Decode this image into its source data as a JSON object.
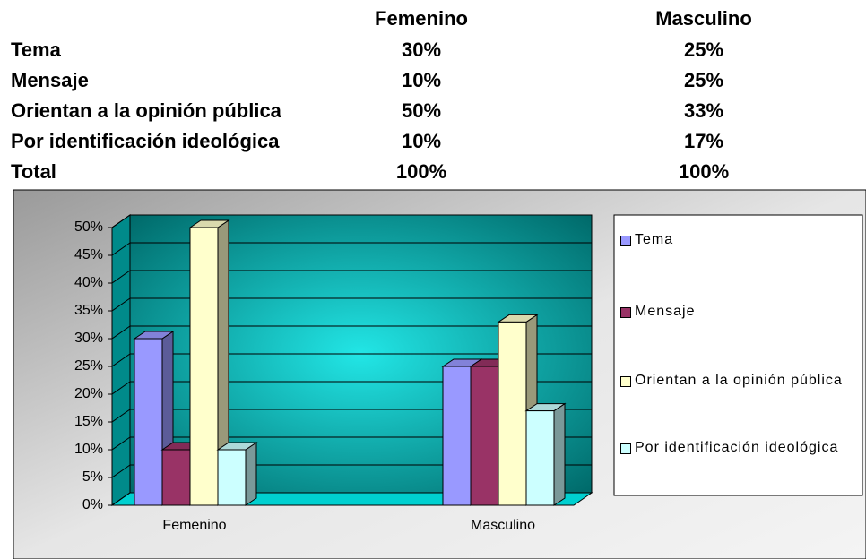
{
  "table": {
    "columns": [
      "Femenino",
      "Masculino"
    ],
    "rows": [
      {
        "label": "Tema",
        "values": [
          "30%",
          "25%"
        ]
      },
      {
        "label": "Mensaje",
        "values": [
          "10%",
          "25%"
        ]
      },
      {
        "label": "Orientan a la opinión pública",
        "values": [
          "50%",
          "33%"
        ]
      },
      {
        "label": "Por identificación ideológica",
        "values": [
          "10%",
          "17%"
        ]
      },
      {
        "label": "Total",
        "values": [
          "100%",
          "100%"
        ]
      }
    ]
  },
  "chart_data": {
    "type": "bar",
    "categories": [
      "Femenino",
      "Masculino"
    ],
    "series": [
      {
        "name": "Tema",
        "color": "#9999ff",
        "values": [
          30,
          25
        ]
      },
      {
        "name": "Mensaje",
        "color": "#993366",
        "values": [
          10,
          25
        ]
      },
      {
        "name": "Orientan a la opinión pública",
        "color": "#ffffcc",
        "values": [
          50,
          33
        ]
      },
      {
        "name": "Por identificación ideológica",
        "color": "#ccffff",
        "values": [
          10,
          17
        ]
      }
    ],
    "ylim": [
      0,
      50
    ],
    "yticks": [
      {
        "value": 0,
        "label": "0%"
      },
      {
        "value": 5,
        "label": "5%"
      },
      {
        "value": 10,
        "label": "10%"
      },
      {
        "value": 15,
        "label": "15%"
      },
      {
        "value": 20,
        "label": "20%"
      },
      {
        "value": 25,
        "label": "25%"
      },
      {
        "value": 30,
        "label": "30%"
      },
      {
        "value": 35,
        "label": "35%"
      },
      {
        "value": 40,
        "label": "40%"
      },
      {
        "value": 45,
        "label": "45%"
      },
      {
        "value": 50,
        "label": "50%"
      }
    ],
    "grid": true,
    "legend": "right"
  }
}
